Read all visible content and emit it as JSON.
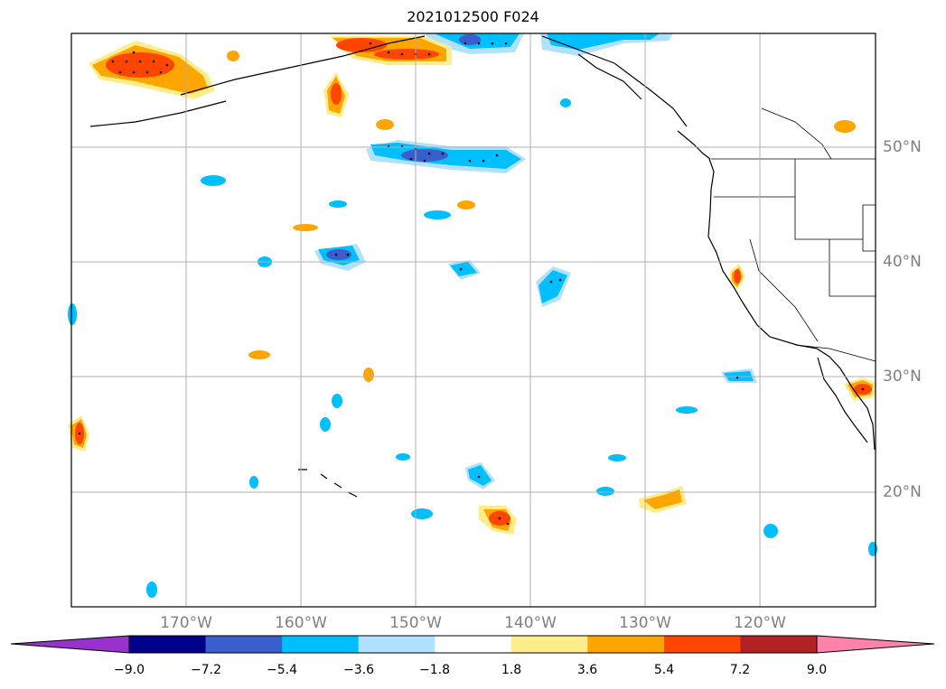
{
  "title": "2021012500 F024",
  "lon_labels": [
    "170°W",
    "160°W",
    "150°W",
    "140°W",
    "130°W",
    "120°W"
  ],
  "lat_labels": [
    "50°N",
    "40°N",
    "30°N",
    "20°N"
  ],
  "colorbar": {
    "ticks": [
      "−9.0",
      "−7.2",
      "−5.4",
      "−3.6",
      "−1.8",
      "1.8",
      "3.6",
      "5.4",
      "7.2",
      "9.0"
    ],
    "colors": [
      "#9932cc",
      "#00008b",
      "#3a5fcd",
      "#00bfff",
      "#b0e2ff",
      "#ffffff",
      "#ffec8b",
      "#ffa500",
      "#ff4500",
      "#b22222",
      "#ff82ab"
    ]
  }
}
